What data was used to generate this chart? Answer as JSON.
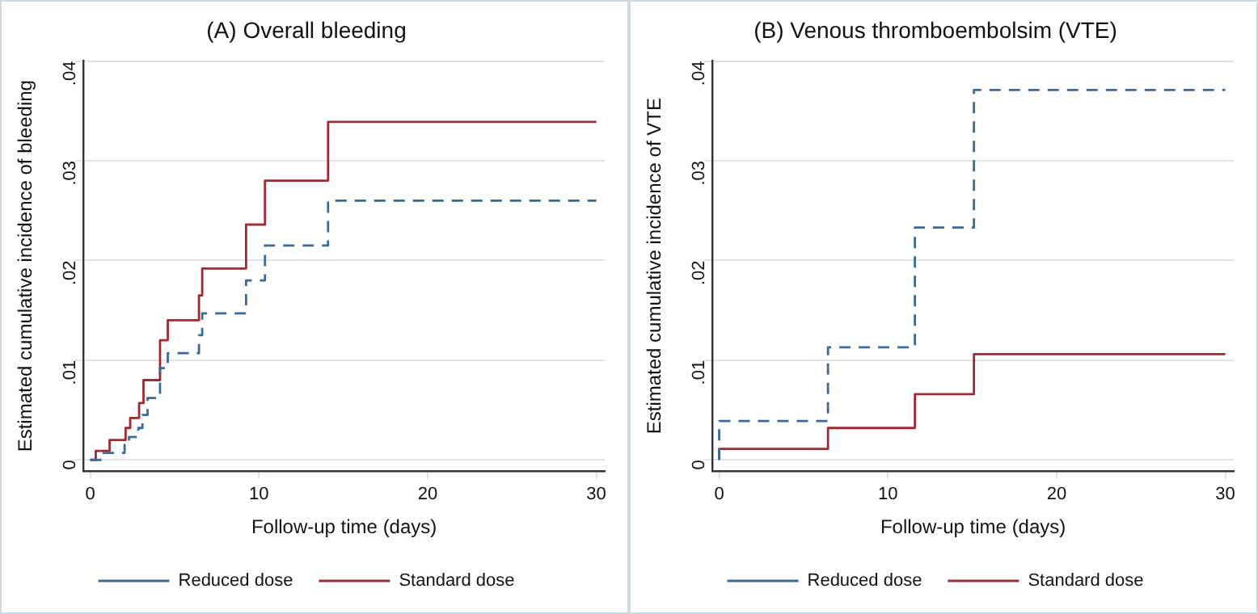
{
  "chart_data": [
    {
      "type": "step",
      "title": "(A) Overall bleeding",
      "xlabel": "Follow-up time (days)",
      "ylabel": "Estimated cumulative incidence of bleeding",
      "xlim": [
        -0.4,
        30.5
      ],
      "xticks": [
        0,
        10,
        20,
        30
      ],
      "ylim": [
        -0.0011,
        0.04
      ],
      "yticks": [
        {
          "value": 0,
          "label": "0"
        },
        {
          "value": 0.01,
          "label": ".01"
        },
        {
          "value": 0.02,
          "label": ".02"
        },
        {
          "value": 0.03,
          "label": ".03"
        },
        {
          "value": 0.04,
          "label": ".04"
        }
      ],
      "grid": "y",
      "legend": "bottom",
      "series": [
        {
          "name": "Reduced dose",
          "color": "#3b6a94",
          "line_style": "dashed",
          "x": [
            0,
            0.8,
            2.04,
            2.3,
            2.86,
            3.1,
            3.4,
            4.14,
            4.6,
            6.45,
            6.64,
            9.24,
            10.36,
            14.1,
            30
          ],
          "values": [
            0,
            0.0007,
            0.0015,
            0.0023,
            0.0032,
            0.0045,
            0.0062,
            0.0092,
            0.0107,
            0.0125,
            0.0147,
            0.018,
            0.0215,
            0.026,
            0.026
          ]
        },
        {
          "name": "Standard dose",
          "color": "#a02a32",
          "line_style": "solid",
          "x": [
            0,
            0.33,
            1.15,
            2.1,
            2.37,
            2.9,
            3.16,
            4.14,
            4.6,
            6.45,
            6.64,
            9.24,
            10.36,
            14.1,
            30
          ],
          "values": [
            0,
            0.0009,
            0.002,
            0.0032,
            0.0042,
            0.0057,
            0.008,
            0.012,
            0.014,
            0.0165,
            0.0192,
            0.0236,
            0.028,
            0.0339,
            0.0339
          ]
        }
      ]
    },
    {
      "type": "step",
      "title": "(B) Venous thromboembolsim (VTE)",
      "xlabel": "Follow-up time (days)",
      "ylabel": "Estimated cumulative incidence of VTE",
      "xlim": [
        -0.4,
        30.5
      ],
      "xticks": [
        0,
        10,
        20,
        30
      ],
      "ylim": [
        -0.0011,
        0.04
      ],
      "yticks": [
        {
          "value": 0,
          "label": "0"
        },
        {
          "value": 0.01,
          "label": ".01"
        },
        {
          "value": 0.02,
          "label": ".02"
        },
        {
          "value": 0.03,
          "label": ".03"
        },
        {
          "value": 0.04,
          "label": ".04"
        }
      ],
      "grid": "y",
      "legend": "bottom",
      "series": [
        {
          "name": "Reduced dose",
          "color": "#3b6a94",
          "line_style": "dashed",
          "x": [
            0,
            0,
            6.45,
            11.6,
            15.1,
            30
          ],
          "values": [
            0,
            0.0039,
            0.0113,
            0.0233,
            0.0371,
            0.0371
          ]
        },
        {
          "name": "Standard dose",
          "color": "#a02a32",
          "line_style": "solid",
          "x": [
            0,
            0,
            6.45,
            11.6,
            15.1,
            30
          ],
          "values": [
            0,
            0.0011,
            0.0032,
            0.0066,
            0.0106,
            0.0106
          ]
        }
      ]
    }
  ]
}
